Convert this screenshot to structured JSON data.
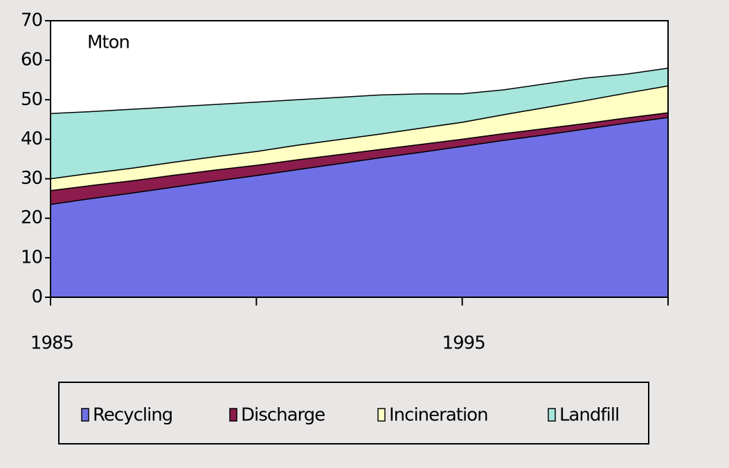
{
  "chart_data": {
    "type": "stacked_area",
    "y_label": "Mton",
    "x": [
      1985,
      1986,
      1987,
      1988,
      1989,
      1990,
      1991,
      1992,
      1993,
      1994,
      1995,
      1996,
      1997,
      1998,
      1999,
      2000
    ],
    "series": [
      {
        "name": "Recycling",
        "color": "#7070e6",
        "values": [
          23.5,
          25,
          26.4,
          27.9,
          29.4,
          30.8,
          32.3,
          33.8,
          35.3,
          36.7,
          38.2,
          39.7,
          41.1,
          42.6,
          44.1,
          45.5
        ]
      },
      {
        "name": "Discharge",
        "color": "#8c1c4c",
        "values": [
          3.5,
          3.3,
          3.1,
          3,
          2.8,
          2.6,
          2.5,
          2.3,
          2.1,
          2,
          1.8,
          1.7,
          1.6,
          1.4,
          1.3,
          1.2
        ]
      },
      {
        "name": "Incineration",
        "color": "#ffffc4",
        "values": [
          3,
          3.1,
          3.2,
          3.3,
          3.4,
          3.5,
          3.7,
          3.8,
          3.9,
          4.1,
          4.3,
          4.8,
          5.3,
          5.8,
          6.3,
          6.8
        ]
      },
      {
        "name": "Landfill",
        "color": "#a6e6dc",
        "values": [
          16.5,
          15.6,
          14.9,
          14,
          13.2,
          12.5,
          11.5,
          10.7,
          9.9,
          8.7,
          7.2,
          6.3,
          6,
          5.7,
          4.8,
          4.5
        ]
      }
    ],
    "xlim": [
      1985,
      2000
    ],
    "xticks": [
      1985,
      1995
    ],
    "xminor": [
      1990,
      2000
    ],
    "ylim": [
      0,
      70
    ],
    "yticks": [
      0,
      10,
      20,
      30,
      40,
      50,
      60,
      70
    ],
    "legend": "bottom"
  }
}
